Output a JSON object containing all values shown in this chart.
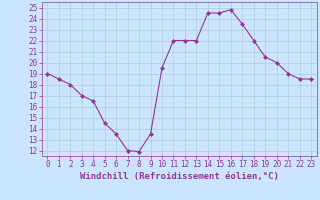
{
  "x": [
    0,
    1,
    2,
    3,
    4,
    5,
    6,
    7,
    8,
    9,
    10,
    11,
    12,
    13,
    14,
    15,
    16,
    17,
    18,
    19,
    20,
    21,
    22,
    23
  ],
  "y": [
    19,
    18.5,
    18,
    17,
    16.5,
    14.5,
    13.5,
    12,
    11.9,
    13.5,
    19.5,
    22,
    22,
    22,
    24.5,
    24.5,
    24.8,
    23.5,
    22,
    20.5,
    20,
    19,
    18.5,
    18.5
  ],
  "line_color": "#993399",
  "marker": "D",
  "marker_size": 2.0,
  "bg_color": "#cce5ff",
  "grid_color": "#aaccdd",
  "xlabel": "Windchill (Refroidissement éolien,°C)",
  "xlabel_color": "#993399",
  "tick_color": "#993399",
  "label_color": "#993399",
  "ylim": [
    11.5,
    25.5
  ],
  "xlim": [
    -0.5,
    23.5
  ],
  "yticks": [
    12,
    13,
    14,
    15,
    16,
    17,
    18,
    19,
    20,
    21,
    22,
    23,
    24,
    25
  ],
  "xticks": [
    0,
    1,
    2,
    3,
    4,
    5,
    6,
    7,
    8,
    9,
    10,
    11,
    12,
    13,
    14,
    15,
    16,
    17,
    18,
    19,
    20,
    21,
    22,
    23
  ],
  "tick_fontsize": 5.5,
  "xlabel_fontsize": 6.5,
  "linewidth": 0.8
}
